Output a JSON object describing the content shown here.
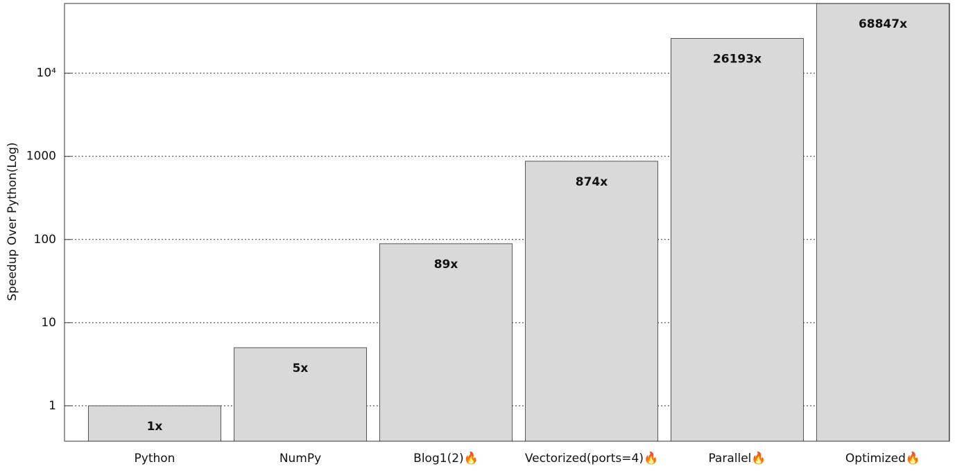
{
  "chart_data": {
    "type": "bar",
    "y_label": "Speedup Over Python(Log)",
    "categories": [
      "Python",
      "NumPy",
      "Blog1(2)🔥",
      "Vectorized(ports=4)🔥",
      "Parallel🔥",
      "Optimized🔥"
    ],
    "values": [
      1,
      5,
      89,
      874,
      26193,
      68847
    ],
    "value_labels": [
      "1x",
      "5x",
      "89x",
      "874x",
      "26193x",
      "68847x"
    ],
    "color": "#d9d9d9",
    "log_scale": true,
    "ylim": [
      0.375,
      69000
    ],
    "yticks": [
      1,
      10,
      100,
      1000,
      {
        "value": 10000,
        "label": "10⁴"
      }
    ],
    "grid": true
  }
}
